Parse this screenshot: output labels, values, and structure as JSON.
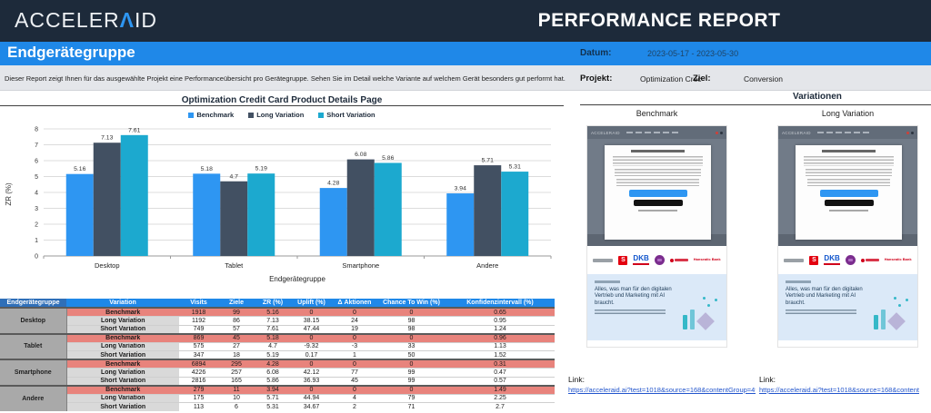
{
  "header": {
    "logo_prefix": "ACCELER",
    "logo_lambda": "Λ",
    "logo_suffix": "ID",
    "title": "PERFORMANCE REPORT"
  },
  "banner": {
    "title": "Endgerätegruppe",
    "datum_label": "Datum:",
    "datum_value": "2023-05-17 - 2023-05-30"
  },
  "info": {
    "description": "Dieser Report zeigt Ihnen für das ausgewählte Projekt eine Performanceübersicht pro Gerätegruppe. Sehen Sie im Detail welche Variante auf welchem Gerät besonders gut performt hat.",
    "projekt_label": "Projekt:",
    "projekt_value": "Optimization Crec",
    "ziel_label": "Ziel:",
    "ziel_value": "Conversion"
  },
  "chart_data": {
    "type": "bar",
    "title": "Optimization Credit Card Product Details Page",
    "categories": [
      "Desktop",
      "Tablet",
      "Smartphone",
      "Andere"
    ],
    "series": [
      {
        "name": "Benchmark",
        "color": "#2e96f2",
        "values": [
          5.16,
          5.18,
          4.28,
          3.94
        ]
      },
      {
        "name": "Long Variation",
        "color": "#425062",
        "values": [
          7.13,
          4.7,
          6.08,
          5.71
        ]
      },
      {
        "name": "Short Variation",
        "color": "#1ca9cf",
        "values": [
          7.61,
          5.19,
          5.86,
          5.31
        ]
      }
    ],
    "xlabel": "Endgerätegruppe",
    "ylabel": "ZR (%)",
    "ylim": [
      0,
      8
    ],
    "yticks": [
      0,
      1,
      2,
      3,
      4,
      5,
      6,
      7,
      8
    ],
    "grid": true,
    "legend_position": "top"
  },
  "table": {
    "headers": [
      "Endgerätegruppe",
      "Variation",
      "Visits",
      "Ziele",
      "ZR (%)",
      "Uplift (%)",
      "Δ Aktionen",
      "Chance To Win (%)",
      "Konfidenzintervall (%)"
    ],
    "groups": [
      {
        "device": "Desktop",
        "rows": [
          {
            "variation": "Benchmark",
            "is_benchmark": true,
            "values": [
              "1918",
              "99",
              "5.16",
              "0",
              "0",
              "0",
              "0.65"
            ]
          },
          {
            "variation": "Long Variation",
            "is_benchmark": false,
            "values": [
              "1192",
              "86",
              "7.13",
              "38.15",
              "24",
              "98",
              "0.95"
            ]
          },
          {
            "variation": "Short Variation",
            "is_benchmark": false,
            "values": [
              "749",
              "57",
              "7.61",
              "47.44",
              "19",
              "98",
              "1.24"
            ]
          }
        ]
      },
      {
        "device": "Tablet",
        "rows": [
          {
            "variation": "Benchmark",
            "is_benchmark": true,
            "values": [
              "869",
              "45",
              "5.18",
              "0",
              "0",
              "0",
              "0.96"
            ]
          },
          {
            "variation": "Long Variation",
            "is_benchmark": false,
            "values": [
              "575",
              "27",
              "4.7",
              "-9.32",
              "-3",
              "33",
              "1.13"
            ]
          },
          {
            "variation": "Short Variation",
            "is_benchmark": false,
            "values": [
              "347",
              "18",
              "5.19",
              "0.17",
              "1",
              "50",
              "1.52"
            ]
          }
        ]
      },
      {
        "device": "Smartphone",
        "rows": [
          {
            "variation": "Benchmark",
            "is_benchmark": true,
            "values": [
              "6894",
              "295",
              "4.28",
              "0",
              "0",
              "0",
              "0.31"
            ]
          },
          {
            "variation": "Long Variation",
            "is_benchmark": false,
            "values": [
              "4226",
              "257",
              "6.08",
              "42.12",
              "77",
              "99",
              "0.47"
            ]
          },
          {
            "variation": "Short Variation",
            "is_benchmark": false,
            "values": [
              "2816",
              "165",
              "5.86",
              "36.93",
              "45",
              "99",
              "0.57"
            ]
          }
        ]
      },
      {
        "device": "Andere",
        "rows": [
          {
            "variation": "Benchmark",
            "is_benchmark": true,
            "values": [
              "279",
              "11",
              "3.94",
              "0",
              "0",
              "0",
              "1.49"
            ]
          },
          {
            "variation": "Long Variation",
            "is_benchmark": false,
            "values": [
              "175",
              "10",
              "5.71",
              "44.94",
              "4",
              "79",
              "2.25"
            ]
          },
          {
            "variation": "Short Variation",
            "is_benchmark": false,
            "values": [
              "113",
              "6",
              "5.31",
              "34.67",
              "2",
              "71",
              "2.7"
            ]
          }
        ]
      }
    ]
  },
  "variations": {
    "title": "Variationen",
    "items": [
      {
        "label": "Benchmark",
        "link_label": "Link:",
        "url": "https://acceleraid.ai?test=1018&source=168&contentGroup=4952&"
      },
      {
        "label": "Long Variation",
        "link_label": "Link:",
        "url": "https://acceleraid.ai?test=1018&source=168&content"
      }
    ],
    "thumb": {
      "dkb_logo": "DKB",
      "hanseatic_logo": "Hanseatic Bank",
      "sparkasse_logo": "S",
      "blue_text": "Alles, was man für den digitalen Vertrieb und Marketing mit AI braucht."
    }
  },
  "colors": {
    "accent_blue": "#1f88e8",
    "navy": "#1d2a3a",
    "benchmark_row": "#e8837c",
    "device_cell": "#a9a9a9",
    "variation_cell": "#d9d9d9",
    "link": "#2255cc"
  }
}
